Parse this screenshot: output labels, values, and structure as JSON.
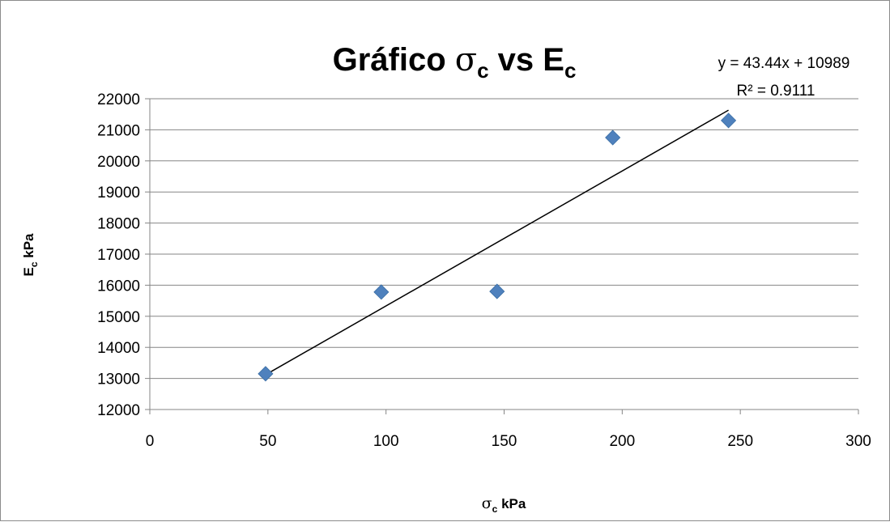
{
  "chart_data": {
    "type": "scatter",
    "title": {
      "prefix": "Gráfico ",
      "sym1": "σ",
      "sub1": "c",
      "mid": " vs E",
      "sub2": "c"
    },
    "xlabel": {
      "sym": "σ",
      "sub": "c",
      "rest": " kPa"
    },
    "ylabel": {
      "main": "E",
      "sub": "c",
      "rest": " kPa"
    },
    "xlim": [
      0,
      300
    ],
    "ylim": [
      12000,
      22000
    ],
    "x_ticks": [
      0,
      50,
      100,
      150,
      200,
      250,
      300
    ],
    "y_ticks": [
      12000,
      13000,
      14000,
      15000,
      16000,
      17000,
      18000,
      19000,
      20000,
      21000,
      22000
    ],
    "grid": "horizontal",
    "series": [
      {
        "marker": "diamond",
        "color": "#4f81bd",
        "points": [
          {
            "x": 49,
            "y": 13150
          },
          {
            "x": 98,
            "y": 15780
          },
          {
            "x": 147,
            "y": 15800
          },
          {
            "x": 196,
            "y": 20750
          },
          {
            "x": 245,
            "y": 21300
          }
        ]
      }
    ],
    "trendline": {
      "type": "linear",
      "slope": 43.44,
      "intercept": 10989,
      "x_range": [
        49,
        245
      ],
      "color": "#000000",
      "equation": "y = 43.44x + 10989",
      "r_squared": "R² = 0.9111"
    },
    "colors": {
      "gridline": "#868686",
      "axis": "#868686",
      "border": "#8c8c8c"
    }
  }
}
